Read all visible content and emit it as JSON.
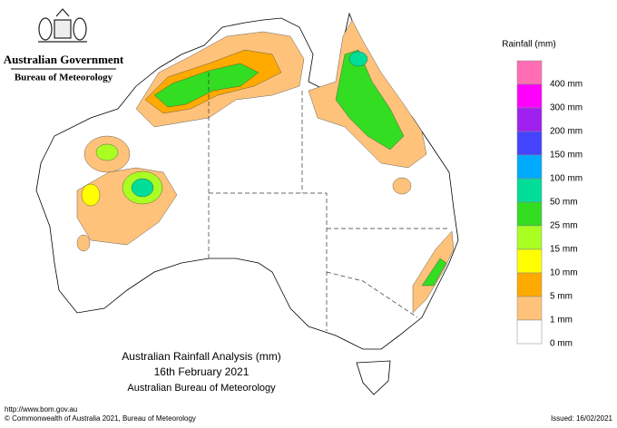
{
  "header": {
    "government": "Australian Government",
    "bureau": "Bureau of Meteorology"
  },
  "legend": {
    "title": "Rainfall (mm)",
    "items": [
      {
        "color": "#ff6eb4",
        "label": "400 mm"
      },
      {
        "color": "#ff00ff",
        "label": "300 mm"
      },
      {
        "color": "#a020f0",
        "label": "200 mm"
      },
      {
        "color": "#4444ff",
        "label": "150 mm"
      },
      {
        "color": "#00aaff",
        "label": "100 mm"
      },
      {
        "color": "#00dd99",
        "label": "50 mm"
      },
      {
        "color": "#33dd22",
        "label": "25 mm"
      },
      {
        "color": "#aaff22",
        "label": "15 mm"
      },
      {
        "color": "#ffff00",
        "label": "10 mm"
      },
      {
        "color": "#ffaa00",
        "label": "5 mm"
      },
      {
        "color": "#ffc27a",
        "label": "1 mm"
      },
      {
        "color": "#ffffff",
        "label": "0 mm"
      }
    ]
  },
  "map": {
    "title": "Australian Rainfall Analysis (mm)",
    "date": "16th February 2021",
    "source": "Australian Bureau of Meteorology"
  },
  "footer": {
    "url": "http://www.bom.gov.au",
    "copyright": "© Commonwealth of Australia 2021, Bureau of Meteorology",
    "issued": "Issued: 16/02/2021"
  }
}
